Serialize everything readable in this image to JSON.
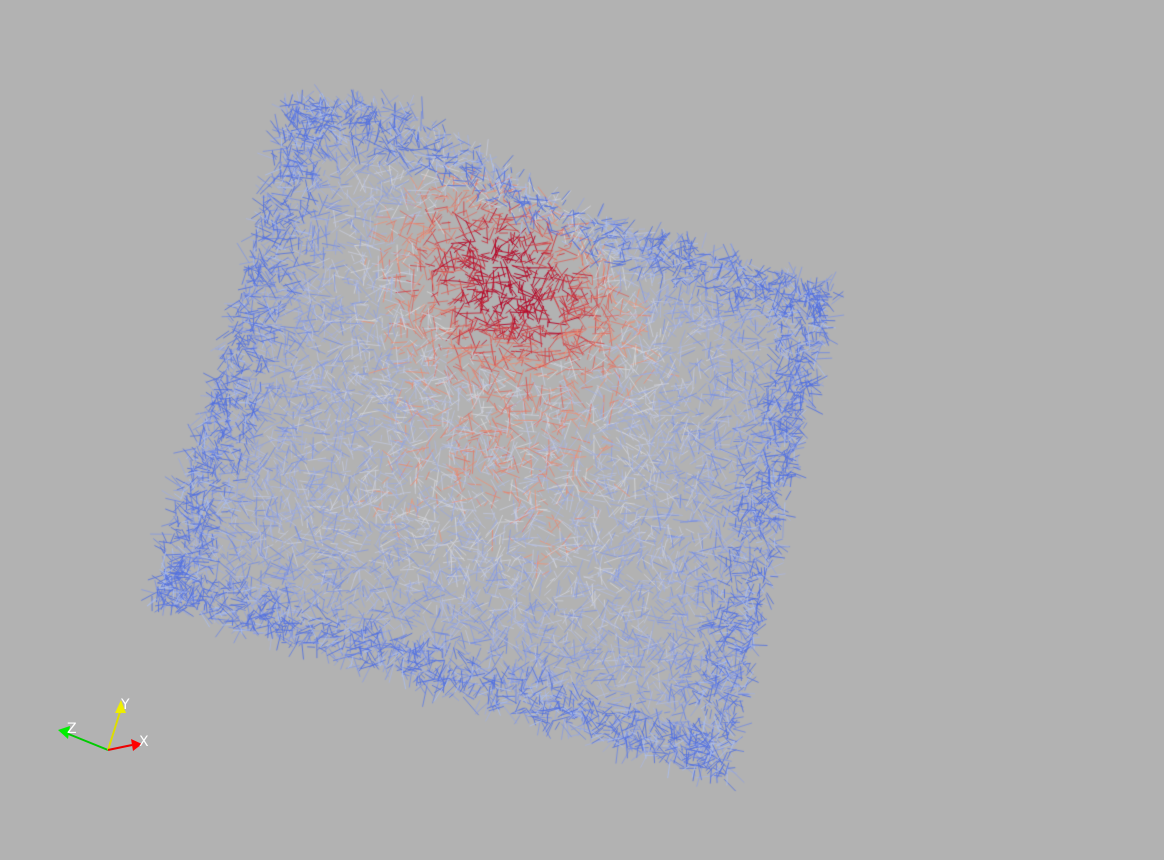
{
  "viewport": {
    "background_color": "#b2b2b2",
    "representation": "wireframe",
    "colormap": {
      "name": "cool-to-warm",
      "low_color": "#3b4cc0",
      "mid_color": "#dddddd",
      "high_color": "#b40426"
    }
  },
  "orientation_axes": {
    "x": {
      "label": "X",
      "color": "#ff0000"
    },
    "y": {
      "label": "Y",
      "color": "#ffff00"
    },
    "z": {
      "label": "Z",
      "color": "#00ff00"
    }
  }
}
